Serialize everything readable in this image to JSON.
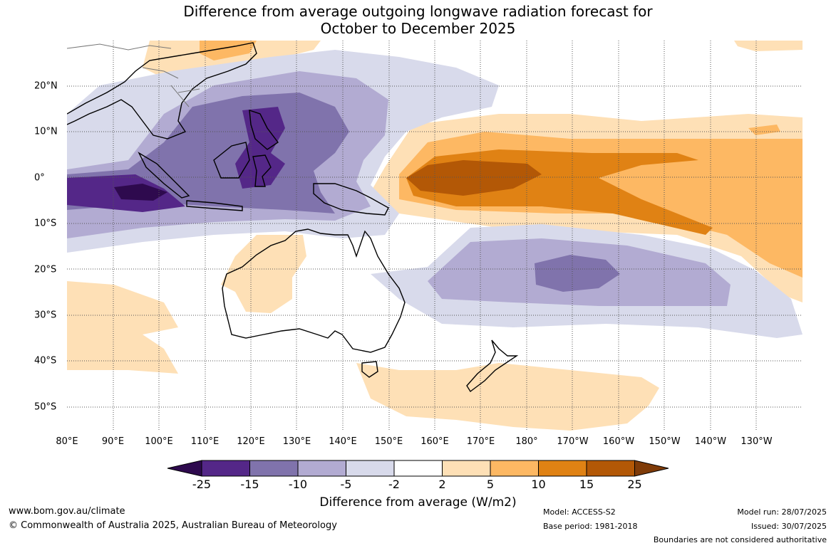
{
  "title_line1": "Difference from average outgoing longwave radiation forecast for",
  "title_line2": "October to December 2025",
  "longitude_labels": [
    "80°E",
    "90°E",
    "100°E",
    "110°E",
    "120°E",
    "130°E",
    "140°E",
    "150°E",
    "160°E",
    "170°E",
    "180°",
    "170°W",
    "160°W",
    "150°W",
    "140°W",
    "130°W"
  ],
  "latitude_labels": [
    "20°N",
    "10°N",
    "0°",
    "10°S",
    "20°S",
    "30°S",
    "40°S",
    "50°S"
  ],
  "colorbar": {
    "ticks": [
      "-25",
      "-15",
      "-10",
      "-5",
      "-2",
      "2",
      "5",
      "10",
      "15",
      "25"
    ],
    "colors": [
      "#2e0a4e",
      "#542788",
      "#8073ac",
      "#b2abd2",
      "#d8daeb",
      "#ffffff",
      "#fee0b6",
      "#fdb863",
      "#e08214",
      "#b35806",
      "#7f3b08"
    ],
    "title": "Difference from average (W/m2)"
  },
  "footer": {
    "url": "www.bom.gov.au/climate",
    "copyright": "© Commonwealth of Australia 2025, Australian Bureau of Meteorology",
    "model": "Model: ACCESS-S2",
    "base_period": "Base period: 1981-2018",
    "model_run": "Model run: 28/07/2025",
    "issued": "Issued: 30/07/2025",
    "boundaries_note": "Boundaries are not considered authoritative"
  }
}
